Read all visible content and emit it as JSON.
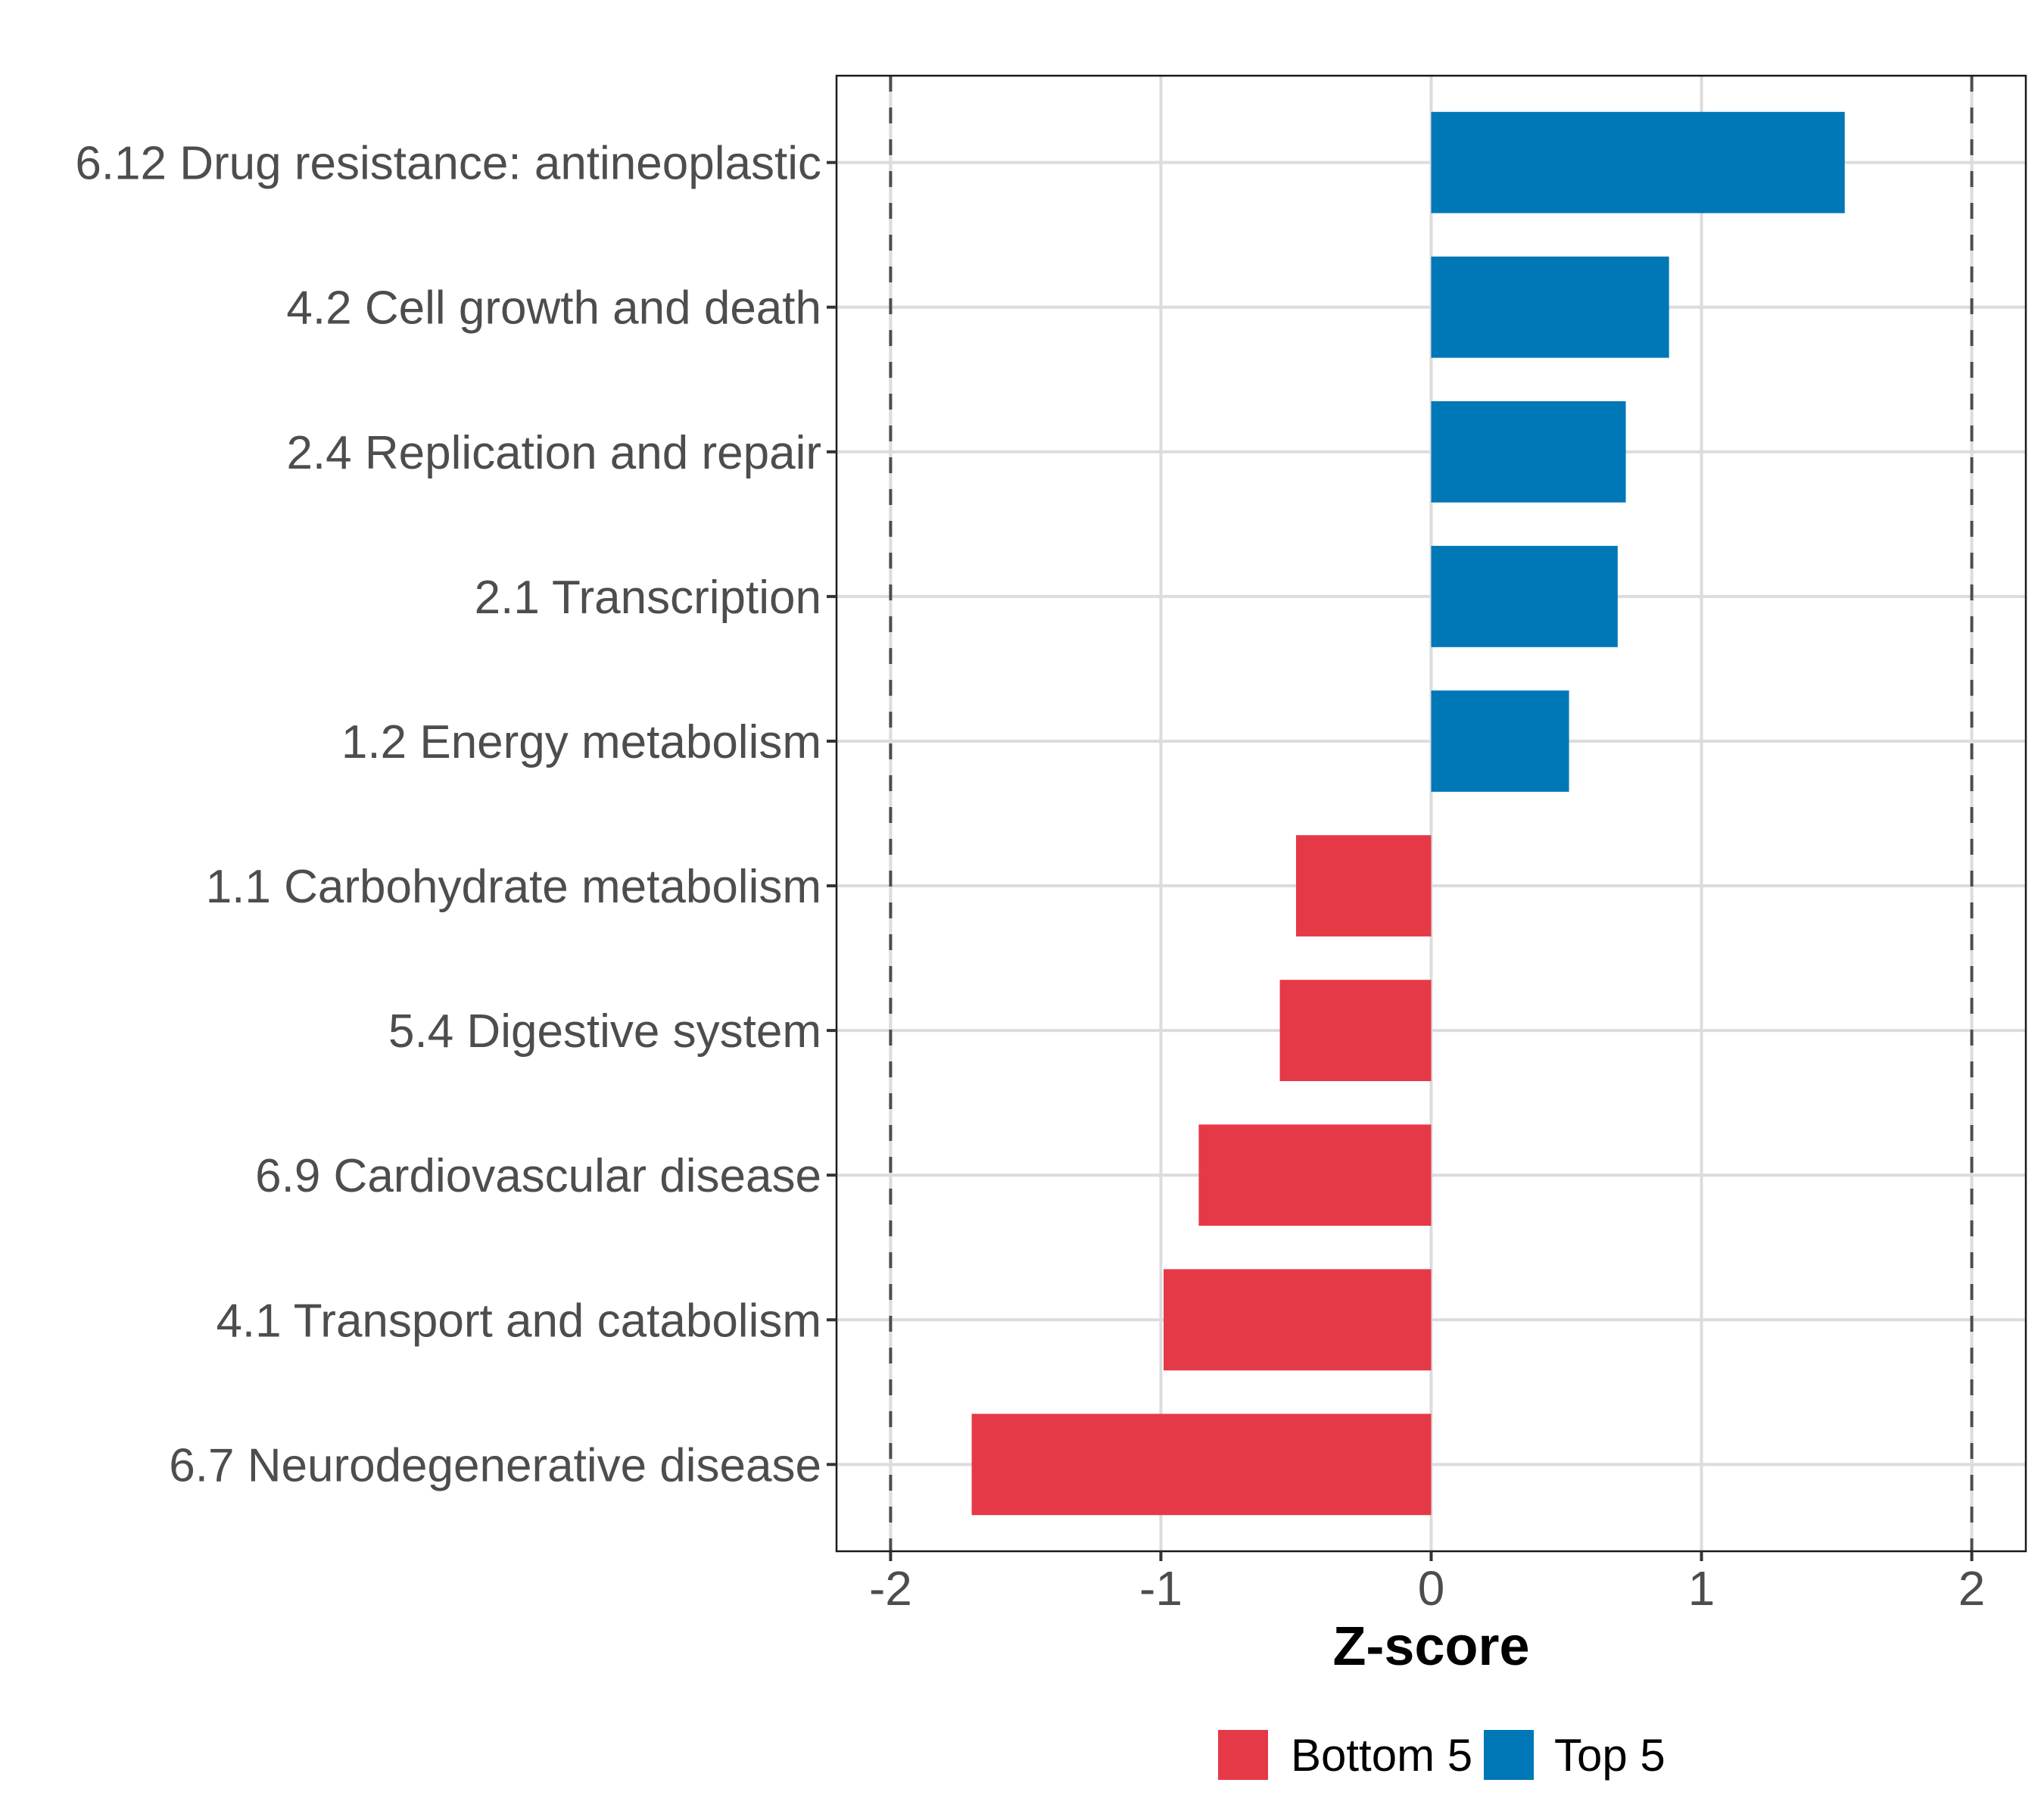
{
  "chart_data": {
    "type": "bar",
    "orientation": "horizontal",
    "title": "",
    "xlabel": "Z-score",
    "ylabel": "",
    "xlim": [
      -2.2,
      2.2
    ],
    "x_ticks": [
      -2,
      -1,
      0,
      1,
      2
    ],
    "x_tick_labels": [
      "-2",
      "-1",
      "0",
      "1",
      "2"
    ],
    "grid": true,
    "reference_lines": [
      {
        "value": -2,
        "style": "dashed"
      },
      {
        "value": 2,
        "style": "dashed"
      }
    ],
    "categories": [
      "6.12 Drug resistance: antineoplastic",
      "4.2 Cell growth and death",
      "2.4 Replication and repair",
      "2.1 Transcription",
      "1.2 Energy metabolism",
      "1.1 Carbohydrate metabolism",
      "5.4 Digestive system",
      "6.9 Cardiovascular disease",
      "4.1 Transport and catabolism",
      "6.7 Neurodegenerative disease"
    ],
    "values": [
      1.53,
      0.88,
      0.72,
      0.69,
      0.51,
      -0.5,
      -0.56,
      -0.86,
      -0.99,
      -1.7
    ],
    "groups": [
      "Top 5",
      "Top 5",
      "Top 5",
      "Top 5",
      "Top 5",
      "Bottom 5",
      "Bottom 5",
      "Bottom 5",
      "Bottom 5",
      "Bottom 5"
    ],
    "legend": {
      "position": "bottom",
      "entries": [
        {
          "label": "Bottom 5",
          "color": "#e63947"
        },
        {
          "label": "Top 5",
          "color": "#0077b6"
        }
      ]
    },
    "colors": {
      "Bottom 5": "#e63947",
      "Top 5": "#0077b6"
    }
  }
}
